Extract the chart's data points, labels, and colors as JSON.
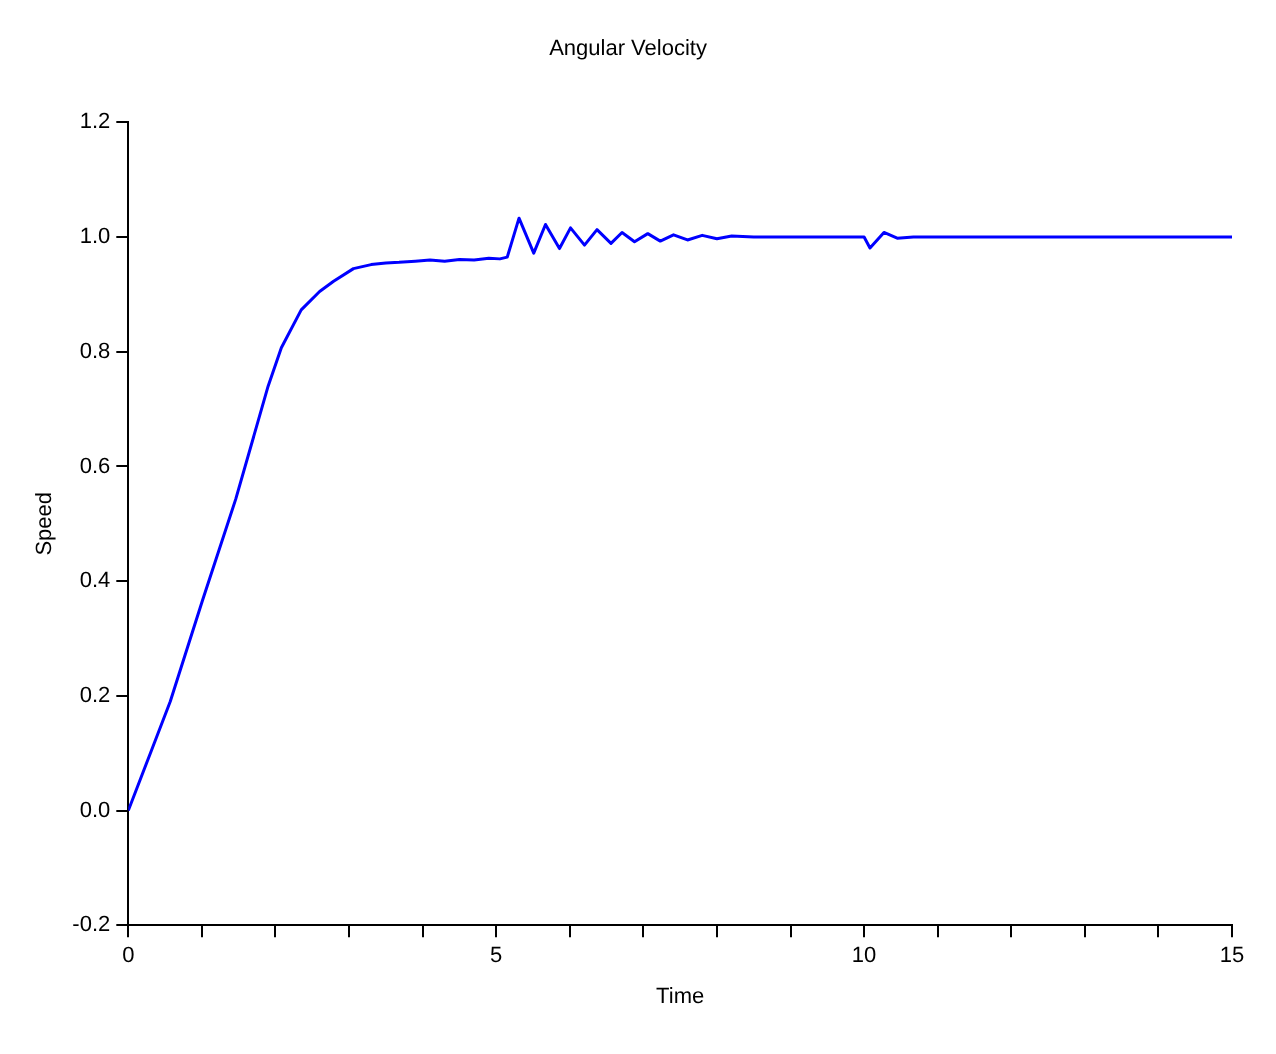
{
  "chart_data": {
    "type": "line",
    "title": "Angular Velocity",
    "xlabel": "Time",
    "ylabel": "Speed",
    "x": [
      0,
      0.3,
      0.57,
      1.01,
      1.46,
      1.9,
      2.08,
      2.35,
      2.6,
      2.79,
      3.06,
      3.3,
      3.5,
      3.68,
      3.9,
      4.1,
      4.3,
      4.5,
      4.7,
      4.9,
      5.05,
      5.15,
      5.31,
      5.51,
      5.67,
      5.86,
      6.01,
      6.2,
      6.37,
      6.56,
      6.71,
      6.88,
      7.06,
      7.23,
      7.41,
      7.6,
      7.8,
      8.0,
      8.2,
      8.5,
      10.0,
      10.08,
      10.27,
      10.45,
      10.67,
      15
    ],
    "series": [
      {
        "color": "#0000ff",
        "values": [
          0,
          0.1,
          0.19,
          0.367,
          0.543,
          0.74,
          0.807,
          0.873,
          0.905,
          0.923,
          0.945,
          0.952,
          0.955,
          0.956,
          0.958,
          0.96,
          0.958,
          0.961,
          0.96,
          0.963,
          0.962,
          0.965,
          1.033,
          0.972,
          1.022,
          0.98,
          1.016,
          0.986,
          1.013,
          0.989,
          1.008,
          0.992,
          1.006,
          0.993,
          1.004,
          0.995,
          1.003,
          0.997,
          1.002,
          1.0,
          1.0,
          0.981,
          1.008,
          0.998,
          1.0,
          1.0
        ]
      }
    ],
    "xlim": [
      0,
      15
    ],
    "ylim": [
      -0.2,
      1.2
    ],
    "xticks": [
      0,
      {
        "value": 1,
        "label": null
      },
      {
        "value": 2,
        "label": null
      },
      {
        "value": 3,
        "label": null
      },
      {
        "value": 4,
        "label": null
      },
      5,
      {
        "value": 6,
        "label": null
      },
      {
        "value": 7,
        "label": null
      },
      {
        "value": 8,
        "label": null
      },
      {
        "value": 9,
        "label": null
      },
      10,
      {
        "value": 11,
        "label": null
      },
      {
        "value": 12,
        "label": null
      },
      {
        "value": 13,
        "label": null
      },
      {
        "value": 14,
        "label": null
      },
      15
    ],
    "yticks": [
      {
        "value": -0.2,
        "label": "-0.2"
      },
      {
        "value": 0,
        "label": "0.0"
      },
      {
        "value": 0.2,
        "label": "0.2"
      },
      {
        "value": 0.4,
        "label": "0.4"
      },
      {
        "value": 0.6,
        "label": "0.6"
      },
      {
        "value": 0.8,
        "label": "0.8"
      },
      {
        "value": 1,
        "label": "1.0"
      },
      {
        "value": 1.2,
        "label": "1.2"
      }
    ],
    "grid": false,
    "legend": false,
    "marker": "none",
    "line_style": "solid"
  }
}
